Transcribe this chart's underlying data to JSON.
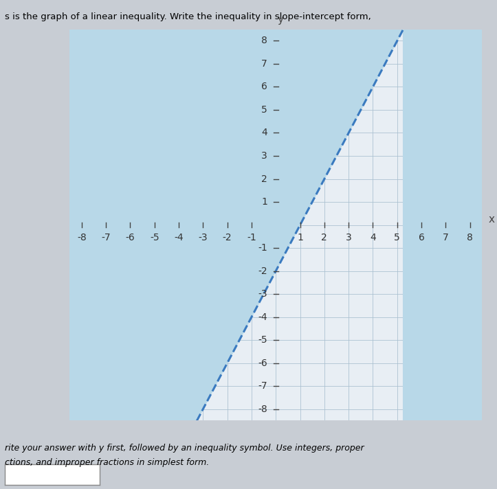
{
  "title_top": "s is the graph of a linear inequality. Write the inequality in slope-intercept form,",
  "subtitle1": "rite your answer with y first, followed by an inequality symbol. Use integers, proper",
  "subtitle2": "ctions, and improper fractions in simplest form.",
  "xlim": [
    -8.5,
    8.5
  ],
  "ylim": [
    -8.5,
    8.5
  ],
  "xticks": [
    -8,
    -7,
    -6,
    -5,
    -4,
    -3,
    -2,
    -1,
    1,
    2,
    3,
    4,
    5,
    6,
    7,
    8
  ],
  "yticks": [
    -8,
    -7,
    -6,
    -5,
    -4,
    -3,
    -2,
    -1,
    1,
    2,
    3,
    4,
    5,
    6,
    7,
    8
  ],
  "slope": 2,
  "intercept": -2,
  "shade_color": "#b8d8e8",
  "shade_alpha": 0.85,
  "line_color": "#3a7abf",
  "line_style": "--",
  "line_width": 2.2,
  "grid_color": "#a8bfcf",
  "grid_alpha": 0.8,
  "fig_bg_color": "#c8cdd4",
  "plot_bg_color": "#e8eef4",
  "shade_bg_color": "#b0cede",
  "tick_fontsize": 10,
  "answer_box_text": ""
}
